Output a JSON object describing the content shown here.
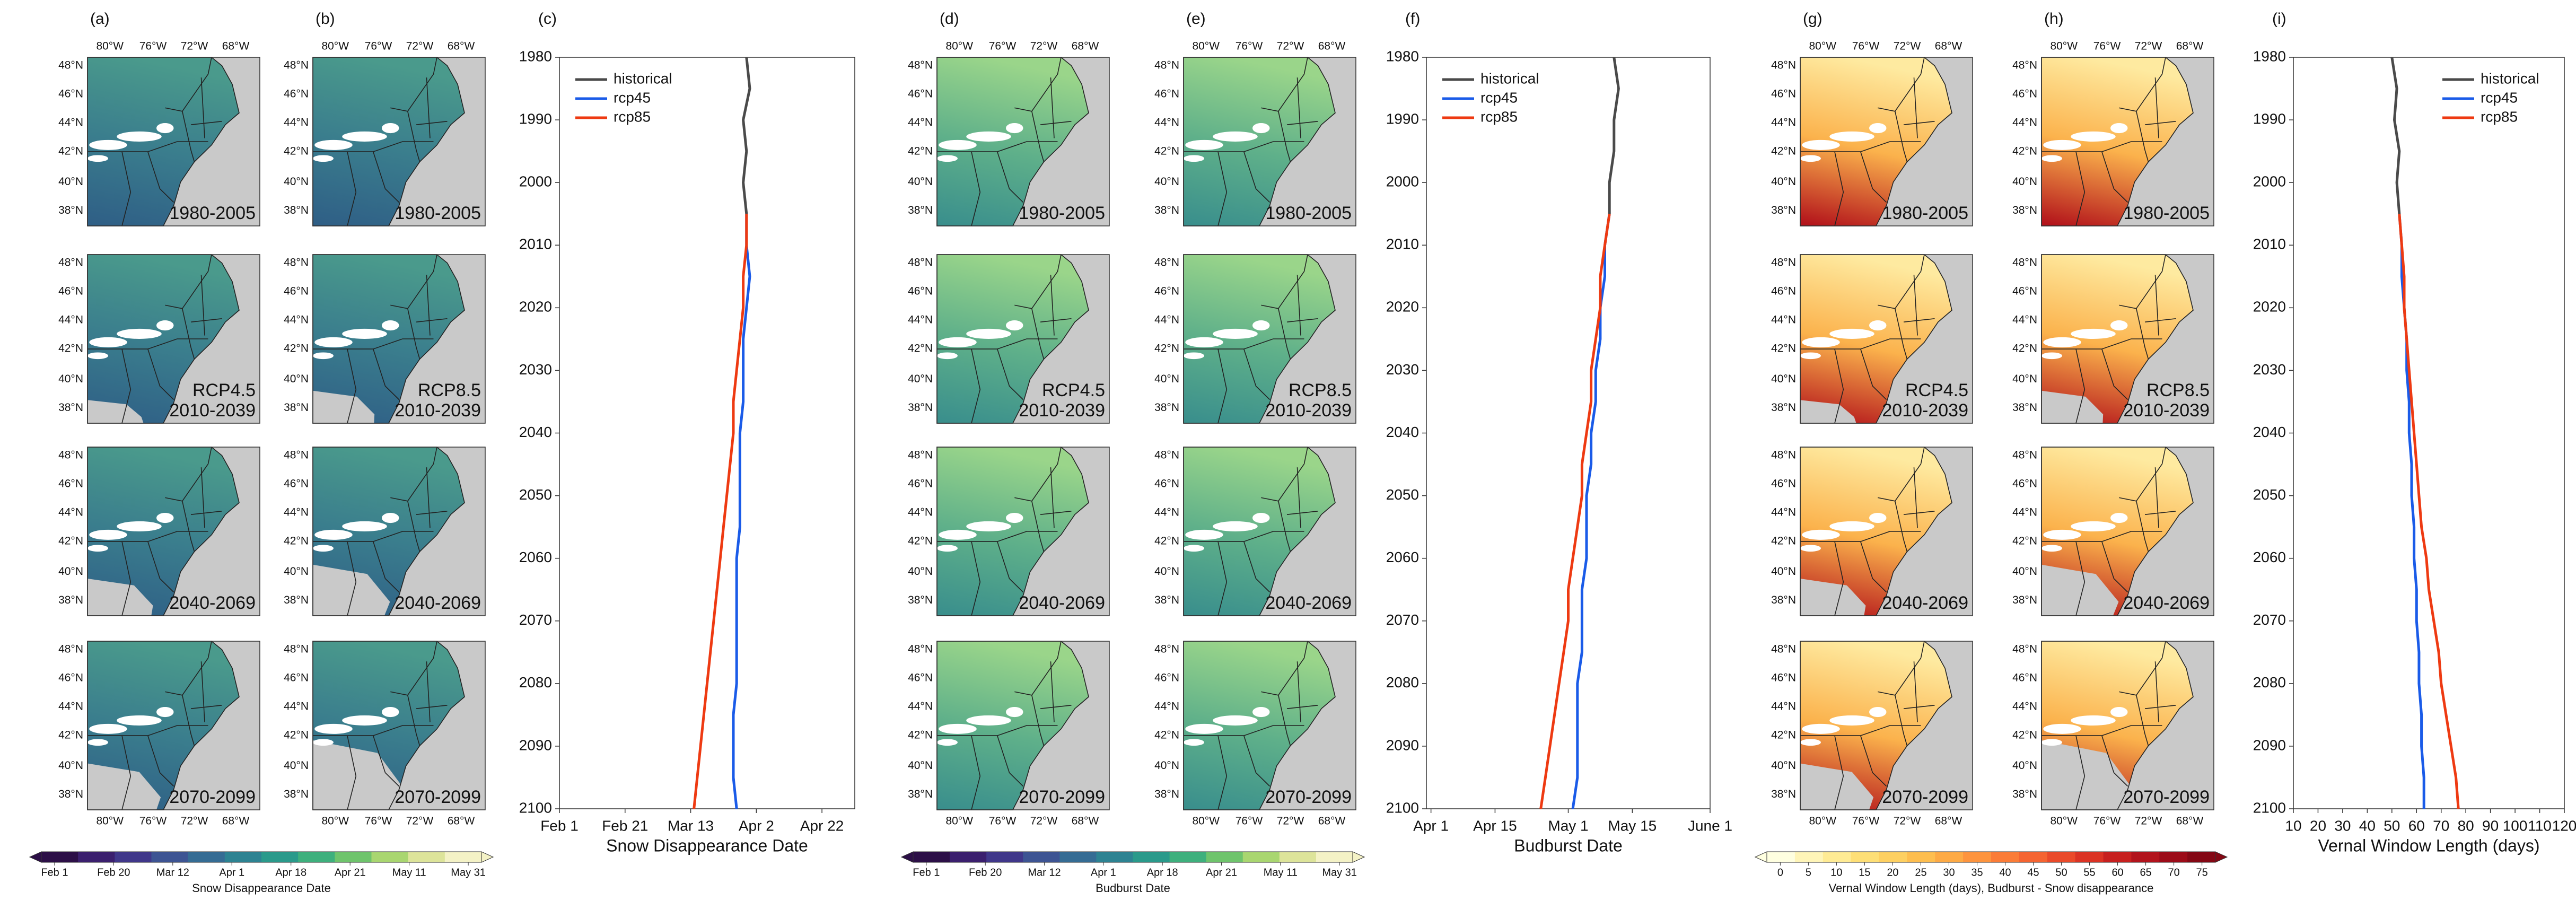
{
  "maps": {
    "lat_labels": [
      "48°N",
      "46°N",
      "44°N",
      "42°N",
      "40°N",
      "38°N"
    ],
    "lon_labels": [
      "80°W",
      "76°W",
      "72°W",
      "68°W"
    ],
    "groups": [
      {
        "columns": [
          {
            "label": "(a)",
            "periods": [
              [
                "1980-2005"
              ],
              [
                "RCP4.5",
                "2010-2039"
              ],
              [
                "2040-2069"
              ],
              [
                "2070-2099"
              ]
            ]
          },
          {
            "label": "(b)",
            "periods": [
              [
                "1980-2005"
              ],
              [
                "RCP8.5",
                "2010-2039"
              ],
              [
                "2040-2069"
              ],
              [
                "2070-2099"
              ]
            ]
          }
        ]
      },
      {
        "columns": [
          {
            "label": "(d)",
            "periods": [
              [
                "1980-2005"
              ],
              [
                "RCP4.5",
                "2010-2039"
              ],
              [
                "2040-2069"
              ],
              [
                "2070-2099"
              ]
            ]
          },
          {
            "label": "(e)",
            "periods": [
              [
                "1980-2005"
              ],
              [
                "RCP8.5",
                "2010-2039"
              ],
              [
                "2040-2069"
              ],
              [
                "2070-2099"
              ]
            ]
          }
        ]
      },
      {
        "columns": [
          {
            "label": "(g)",
            "periods": [
              [
                "1980-2005"
              ],
              [
                "RCP4.5",
                "2010-2039"
              ],
              [
                "2040-2069"
              ],
              [
                "2070-2099"
              ]
            ]
          },
          {
            "label": "(h)",
            "periods": [
              [
                "1980-2005"
              ],
              [
                "RCP8.5",
                "2010-2039"
              ],
              [
                "2040-2069"
              ],
              [
                "2070-2099"
              ]
            ]
          }
        ]
      }
    ]
  },
  "colorbars": [
    {
      "ticks": [
        "Feb 1",
        "Feb 20",
        "Mar 12",
        "Apr 1",
        "Apr 18",
        "Apr 21",
        "May 11",
        "May 31"
      ],
      "label": "Snow Disappearance Date",
      "colors": [
        "#2c0f47",
        "#3b1f6e",
        "#40378a",
        "#3d5493",
        "#356c94",
        "#2d8392",
        "#2a9a8b",
        "#3eb07d",
        "#6fc46c",
        "#a9d670",
        "#dde49a",
        "#f4f2c6"
      ]
    },
    {
      "ticks": [
        "Feb 1",
        "Feb 20",
        "Mar 12",
        "Apr 1",
        "Apr 18",
        "Apr 21",
        "May 11",
        "May 31"
      ],
      "label": "Budburst Date",
      "colors": [
        "#2c0f47",
        "#3b1f6e",
        "#40378a",
        "#3d5493",
        "#356c94",
        "#2d8392",
        "#2a9a8b",
        "#3eb07d",
        "#6fc46c",
        "#a9d670",
        "#dde49a",
        "#f4f2c6"
      ]
    },
    {
      "ticks": [
        "0",
        "5",
        "10",
        "15",
        "20",
        "25",
        "30",
        "35",
        "40",
        "45",
        "50",
        "55",
        "60",
        "65",
        "70",
        "75"
      ],
      "label": "Vernal Window Length (days), Budburst - Snow disappearance",
      "colors": [
        "#ffffe0",
        "#fff5b8",
        "#ffeb94",
        "#fedf76",
        "#fed061",
        "#febe4f",
        "#fdaa45",
        "#fd943e",
        "#fb7c37",
        "#f56431",
        "#ea4a2a",
        "#db3324",
        "#c7201f",
        "#b2131c",
        "#9c0b18",
        "#840714"
      ]
    }
  ],
  "chart_data": [
    {
      "type": "line",
      "orientation": "vertical",
      "title": "(c)",
      "ylabel": "Snow Disappearance Date",
      "legend": "upper left",
      "x": [
        1980,
        1985,
        1990,
        1995,
        2000,
        2005,
        2010,
        2015,
        2020,
        2025,
        2030,
        2035,
        2040,
        2045,
        2050,
        2055,
        2060,
        2065,
        2070,
        2075,
        2080,
        2085,
        2090,
        2095,
        2100
      ],
      "xlim": [
        1980,
        2100
      ],
      "xticks": [
        1980,
        1990,
        2000,
        2010,
        2020,
        2030,
        2040,
        2050,
        2060,
        2070,
        2080,
        2090,
        2100
      ],
      "ylim": [
        32,
        122
      ],
      "yticks": [
        {
          "value": 32,
          "label": "Feb 1"
        },
        {
          "value": 52,
          "label": "Feb 21"
        },
        {
          "value": 72,
          "label": "Mar 13"
        },
        {
          "value": 92,
          "label": "Apr 2"
        },
        {
          "value": 112,
          "label": "Apr 22"
        }
      ],
      "series": [
        {
          "name": "historical",
          "color": "#4a4a4a",
          "values": [
            89,
            90,
            88,
            89,
            88,
            89,
            null,
            null,
            null,
            null,
            null,
            null,
            null,
            null,
            null,
            null,
            null,
            null,
            null,
            null,
            null,
            null,
            null,
            null,
            null
          ]
        },
        {
          "name": "rcp45",
          "color": "#1a5be8",
          "values": [
            null,
            null,
            null,
            null,
            null,
            89,
            89,
            90,
            89,
            88,
            88,
            88,
            87,
            87,
            87,
            87,
            86,
            86,
            86,
            86,
            86,
            85,
            85,
            85,
            86
          ]
        },
        {
          "name": "rcp85",
          "color": "#ee3a12",
          "values": [
            null,
            null,
            null,
            null,
            null,
            89,
            89,
            88,
            88,
            87,
            86,
            85,
            85,
            84,
            83,
            82,
            81,
            80,
            79,
            78,
            77,
            76,
            75,
            74,
            73
          ]
        }
      ]
    },
    {
      "type": "line",
      "orientation": "vertical",
      "title": "(f)",
      "ylabel": "Budburst Date",
      "legend": "upper left",
      "x": [
        1980,
        1985,
        1990,
        1995,
        2000,
        2005,
        2010,
        2015,
        2020,
        2025,
        2030,
        2035,
        2040,
        2045,
        2050,
        2055,
        2060,
        2065,
        2070,
        2075,
        2080,
        2085,
        2090,
        2095,
        2100
      ],
      "xlim": [
        1980,
        2100
      ],
      "xticks": [
        1980,
        1990,
        2000,
        2010,
        2020,
        2030,
        2040,
        2050,
        2060,
        2070,
        2080,
        2090,
        2100
      ],
      "ylim": [
        90,
        152
      ],
      "yticks": [
        {
          "value": 91,
          "label": "Apr 1"
        },
        {
          "value": 105,
          "label": "Apr 15"
        },
        {
          "value": 121,
          "label": "May 1"
        },
        {
          "value": 135,
          "label": "May 15"
        },
        {
          "value": 152,
          "label": "June 1"
        }
      ],
      "series": [
        {
          "name": "historical",
          "color": "#4a4a4a",
          "values": [
            131,
            132,
            131,
            131,
            130,
            130,
            null,
            null,
            null,
            null,
            null,
            null,
            null,
            null,
            null,
            null,
            null,
            null,
            null,
            null,
            null,
            null,
            null,
            null,
            null
          ]
        },
        {
          "name": "rcp45",
          "color": "#1a5be8",
          "values": [
            null,
            null,
            null,
            null,
            null,
            130,
            129,
            129,
            128,
            128,
            127,
            127,
            126,
            126,
            125,
            125,
            125,
            124,
            124,
            124,
            123,
            123,
            123,
            123,
            122
          ]
        },
        {
          "name": "rcp85",
          "color": "#ee3a12",
          "values": [
            null,
            null,
            null,
            null,
            null,
            130,
            129,
            128,
            128,
            127,
            126,
            126,
            125,
            124,
            124,
            123,
            122,
            121,
            121,
            120,
            119,
            118,
            117,
            116,
            115
          ]
        }
      ]
    },
    {
      "type": "line",
      "orientation": "vertical",
      "title": "(i)",
      "ylabel": "Vernal Window Length (days)",
      "legend": "upper right",
      "x": [
        1980,
        1985,
        1990,
        1995,
        2000,
        2005,
        2010,
        2015,
        2020,
        2025,
        2030,
        2035,
        2040,
        2045,
        2050,
        2055,
        2060,
        2065,
        2070,
        2075,
        2080,
        2085,
        2090,
        2095,
        2100
      ],
      "xlim": [
        1980,
        2100
      ],
      "xticks": [
        1980,
        1990,
        2000,
        2010,
        2020,
        2030,
        2040,
        2050,
        2060,
        2070,
        2080,
        2090,
        2100
      ],
      "ylim": [
        10,
        120
      ],
      "yticks": [
        10,
        20,
        30,
        40,
        50,
        60,
        70,
        80,
        90,
        100,
        110,
        120
      ],
      "series": [
        {
          "name": "historical",
          "color": "#4a4a4a",
          "values": [
            50,
            52,
            51,
            53,
            52,
            53,
            null,
            null,
            null,
            null,
            null,
            null,
            null,
            null,
            null,
            null,
            null,
            null,
            null,
            null,
            null,
            null,
            null,
            null,
            null
          ]
        },
        {
          "name": "rcp45",
          "color": "#1a5be8",
          "values": [
            null,
            null,
            null,
            null,
            null,
            53,
            54,
            54,
            55,
            56,
            56,
            57,
            57,
            58,
            58,
            59,
            59,
            60,
            60,
            61,
            61,
            62,
            62,
            63,
            63
          ]
        },
        {
          "name": "rcp85",
          "color": "#ee3a12",
          "values": [
            null,
            null,
            null,
            null,
            null,
            53,
            54,
            55,
            55,
            56,
            57,
            58,
            59,
            60,
            61,
            62,
            64,
            65,
            67,
            69,
            70,
            72,
            74,
            76,
            77
          ]
        }
      ]
    }
  ]
}
